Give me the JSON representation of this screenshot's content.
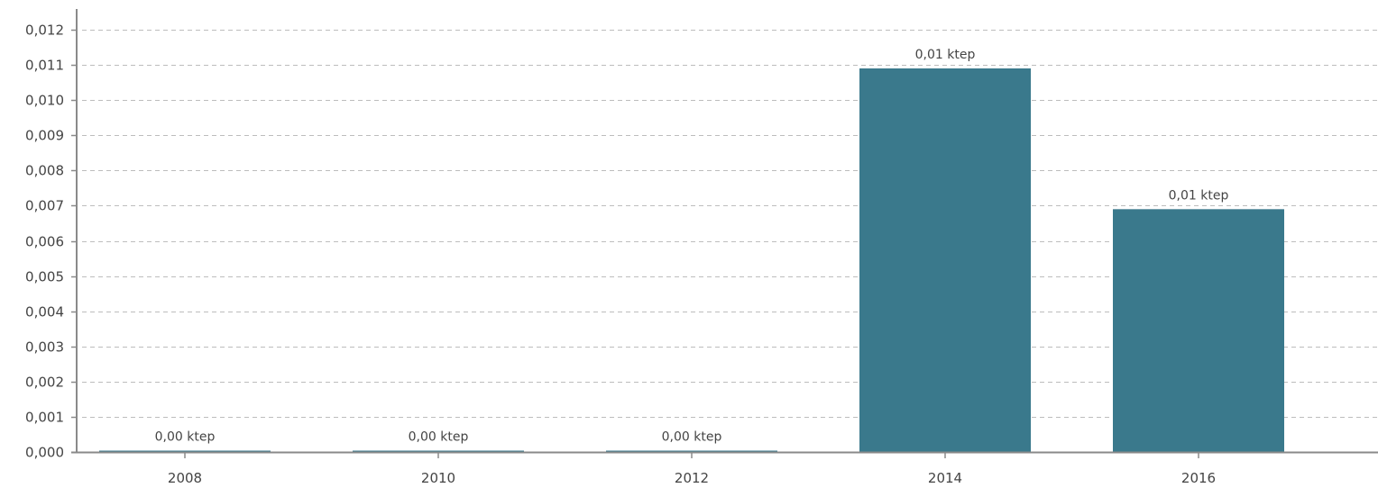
{
  "colors": {
    "bar": "#3a798c",
    "grid": "#bdbdbd",
    "axis": "#8a8a8a",
    "text": "#444444"
  },
  "chart_data": {
    "type": "bar",
    "categories": [
      "2008",
      "2010",
      "2012",
      "2014",
      "2016"
    ],
    "values": [
      3e-05,
      3e-05,
      3e-05,
      0.0109,
      0.0069
    ],
    "data_labels": [
      "0,00 ktep",
      "0,00 ktep",
      "0,00 ktep",
      "0,01 ktep",
      "0,01 ktep"
    ],
    "ylim": [
      0,
      0.012
    ],
    "yticks": [
      0,
      0.001,
      0.002,
      0.003,
      0.004,
      0.005,
      0.006,
      0.007,
      0.008,
      0.009,
      0.01,
      0.011,
      0.012
    ],
    "ytick_labels": [
      "0,000",
      "0,001",
      "0,002",
      "0,003",
      "0,004",
      "0,005",
      "0,006",
      "0,007",
      "0,008",
      "0,009",
      "0,010",
      "0,011",
      "0,012"
    ],
    "grid": true,
    "legend": "none",
    "title": "",
    "xlabel": "",
    "ylabel": ""
  }
}
